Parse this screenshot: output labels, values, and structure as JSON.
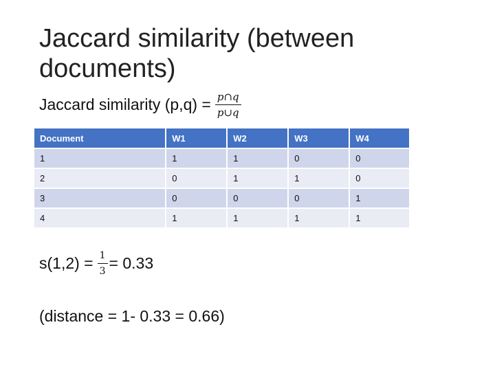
{
  "slide": {
    "title": "Jaccard similarity (between documents)",
    "formula": {
      "label": "Jaccard similarity (p,q) =",
      "numerator": "p∩q",
      "denominator": "p∪q"
    },
    "table": {
      "headers": [
        "Document",
        "W1",
        "W2",
        "W3",
        "W4"
      ],
      "rows": [
        [
          "1",
          "1",
          "1",
          "0",
          "0"
        ],
        [
          "2",
          "0",
          "1",
          "1",
          "0"
        ],
        [
          "3",
          "0",
          "0",
          "0",
          "1"
        ],
        [
          "4",
          "1",
          "1",
          "1",
          "1"
        ]
      ]
    },
    "similarity": {
      "prefix": "s(1,2) =",
      "numerator": "1",
      "denominator": "3",
      "result": "= 0.33"
    },
    "distance": "(distance = 1- 0.33 = 0.66)"
  }
}
